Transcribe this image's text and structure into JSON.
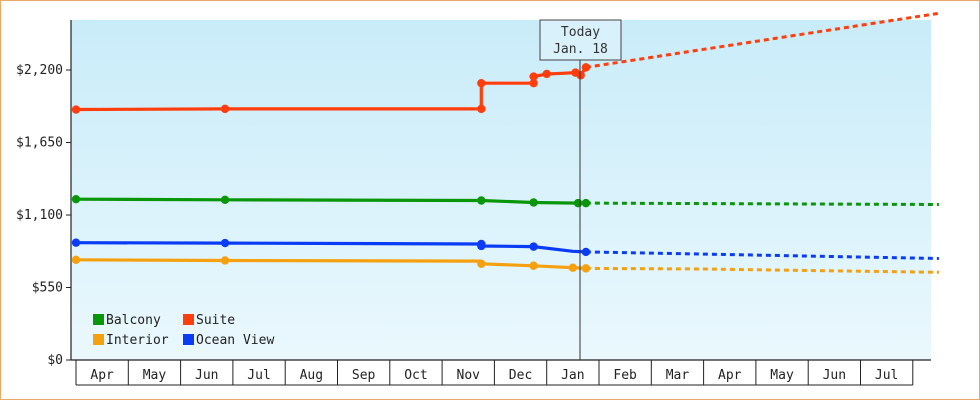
{
  "chart_data": {
    "type": "line",
    "y_ticks": [
      "$0",
      "$550",
      "$1,100",
      "$1,650",
      "$2,200"
    ],
    "ylim": [
      0,
      2200
    ],
    "x_months": [
      "Apr",
      "May",
      "Jun",
      "Jul",
      "Aug",
      "Sep",
      "Oct",
      "Nov",
      "Dec",
      "Jan",
      "Feb",
      "Mar",
      "Apr",
      "May",
      "Jun",
      "Jul"
    ],
    "today_label": [
      "Today",
      "Jan. 18"
    ],
    "grid": false,
    "legend_position": "bottom-left",
    "series": [
      {
        "name": "Balcony",
        "color": "#0a960a",
        "points": [
          [
            0.0,
            1220
          ],
          [
            2.85,
            1215
          ],
          [
            7.75,
            1210
          ],
          [
            8.75,
            1195
          ],
          [
            9.6,
            1190
          ],
          [
            9.75,
            1190
          ]
        ],
        "forecast": [
          [
            9.75,
            1190
          ],
          [
            16.5,
            1180
          ]
        ]
      },
      {
        "name": "Suite",
        "color": "#ff3d0d",
        "points": [
          [
            0.0,
            1900
          ],
          [
            2.85,
            1905
          ],
          [
            7.75,
            1905
          ],
          [
            7.75,
            2100
          ],
          [
            8.75,
            2100
          ],
          [
            8.75,
            2150
          ],
          [
            9.0,
            2170
          ],
          [
            9.3,
            2175
          ],
          [
            9.55,
            2180
          ],
          [
            9.65,
            2160
          ],
          [
            9.75,
            2220
          ]
        ],
        "forecast": [
          [
            9.75,
            2220
          ],
          [
            16.5,
            2630
          ]
        ]
      },
      {
        "name": "Interior",
        "color": "#f5a00f",
        "points": [
          [
            0.0,
            760
          ],
          [
            2.85,
            755
          ],
          [
            7.75,
            750
          ],
          [
            7.75,
            730
          ],
          [
            8.75,
            715
          ],
          [
            9.5,
            700
          ],
          [
            9.75,
            695
          ]
        ],
        "forecast": [
          [
            9.75,
            695
          ],
          [
            12.0,
            690
          ],
          [
            16.5,
            665
          ]
        ]
      },
      {
        "name": "Ocean View",
        "color": "#0a3cf5",
        "points": [
          [
            0.0,
            890
          ],
          [
            2.85,
            887
          ],
          [
            7.75,
            880
          ],
          [
            7.75,
            865
          ],
          [
            8.75,
            860
          ],
          [
            9.5,
            825
          ],
          [
            9.75,
            820
          ]
        ],
        "forecast": [
          [
            9.75,
            820
          ],
          [
            16.5,
            770
          ]
        ]
      }
    ],
    "markers": {
      "Balcony": [
        [
          0.0,
          1220
        ],
        [
          2.85,
          1215
        ],
        [
          7.75,
          1210
        ],
        [
          8.75,
          1195
        ],
        [
          9.6,
          1190
        ],
        [
          9.75,
          1190
        ]
      ],
      "Suite": [
        [
          0.0,
          1900
        ],
        [
          2.85,
          1905
        ],
        [
          7.75,
          1905
        ],
        [
          7.75,
          2100
        ],
        [
          8.75,
          2100
        ],
        [
          8.75,
          2150
        ],
        [
          9.0,
          2170
        ],
        [
          9.55,
          2180
        ],
        [
          9.65,
          2160
        ],
        [
          9.75,
          2220
        ]
      ],
      "Interior": [
        [
          0.0,
          760
        ],
        [
          2.85,
          755
        ],
        [
          7.75,
          730
        ],
        [
          8.75,
          715
        ],
        [
          9.5,
          700
        ],
        [
          9.75,
          695
        ]
      ],
      "Ocean View": [
        [
          0.0,
          890
        ],
        [
          2.85,
          887
        ],
        [
          7.75,
          880
        ],
        [
          7.75,
          865
        ],
        [
          8.75,
          860
        ],
        [
          9.75,
          820
        ]
      ]
    }
  }
}
